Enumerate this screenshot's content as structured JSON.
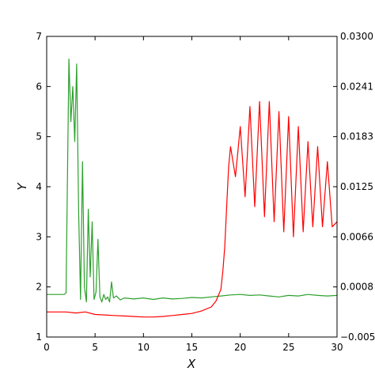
{
  "chart_data": {
    "type": "line",
    "title": "",
    "xlabel": "X",
    "ylabel": "Y",
    "xlim": [
      0,
      30
    ],
    "ylim_left": [
      1,
      7
    ],
    "ylim_right": [
      -0.005,
      0.03
    ],
    "grid": false,
    "legend": "none",
    "x_ticks": [
      "0",
      "5",
      "10",
      "15",
      "20",
      "25",
      "30"
    ],
    "y_left_ticks": [
      "1",
      "2",
      "3",
      "4",
      "5",
      "6",
      "7"
    ],
    "y_right_ticks": [
      "−0.0050",
      "0.0008",
      "0.0066",
      "0.0125",
      "0.0183",
      "0.0241",
      "0.0300"
    ],
    "series": [
      {
        "axis": "left",
        "color": "#2ca02c",
        "x": [
          0,
          1.8,
          2.0,
          2.3,
          2.5,
          2.7,
          2.9,
          3.1,
          3.3,
          3.5,
          3.7,
          3.9,
          4.1,
          4.3,
          4.5,
          4.7,
          4.9,
          5.1,
          5.3,
          5.5,
          5.7,
          5.9,
          6.1,
          6.3,
          6.5,
          6.7,
          6.9,
          7.2,
          7.6,
          8.0,
          9.0,
          10,
          11,
          12,
          13,
          14,
          15,
          16,
          17,
          18,
          19,
          20,
          21,
          22,
          23,
          24,
          25,
          26,
          27,
          28,
          29,
          30
        ],
        "y": [
          1.85,
          1.85,
          1.88,
          6.55,
          5.3,
          6.0,
          4.9,
          6.45,
          3.5,
          1.75,
          4.5,
          2.0,
          1.7,
          3.55,
          2.2,
          3.3,
          1.75,
          1.9,
          2.95,
          1.8,
          1.7,
          1.85,
          1.75,
          1.8,
          1.7,
          2.1,
          1.78,
          1.82,
          1.74,
          1.78,
          1.76,
          1.78,
          1.75,
          1.78,
          1.76,
          1.77,
          1.79,
          1.78,
          1.8,
          1.82,
          1.84,
          1.85,
          1.83,
          1.84,
          1.82,
          1.8,
          1.83,
          1.82,
          1.85,
          1.83,
          1.82,
          1.83
        ]
      },
      {
        "axis": "left",
        "color": "#ff0000",
        "x": [
          0,
          2,
          3,
          4,
          5,
          6,
          7,
          8,
          9,
          10,
          11,
          12,
          13,
          14,
          15,
          16,
          17,
          17.5,
          18,
          18.2,
          18.4,
          18.6,
          18.8,
          19.0,
          19.5,
          20,
          20.5,
          21,
          21.5,
          22,
          22.5,
          23,
          23.5,
          24,
          24.5,
          25,
          25.5,
          26,
          26.5,
          27,
          27.5,
          28,
          28.5,
          29,
          29.5,
          30
        ],
        "y": [
          1.5,
          1.5,
          1.48,
          1.5,
          1.45,
          1.44,
          1.43,
          1.42,
          1.41,
          1.4,
          1.4,
          1.41,
          1.43,
          1.45,
          1.47,
          1.52,
          1.6,
          1.72,
          1.95,
          2.3,
          2.8,
          3.6,
          4.4,
          4.8,
          4.2,
          5.2,
          3.8,
          5.6,
          3.6,
          5.7,
          3.4,
          5.7,
          3.3,
          5.5,
          3.1,
          5.4,
          3.0,
          5.2,
          3.1,
          4.9,
          3.2,
          4.8,
          3.2,
          4.5,
          3.2,
          3.3
        ]
      }
    ]
  }
}
